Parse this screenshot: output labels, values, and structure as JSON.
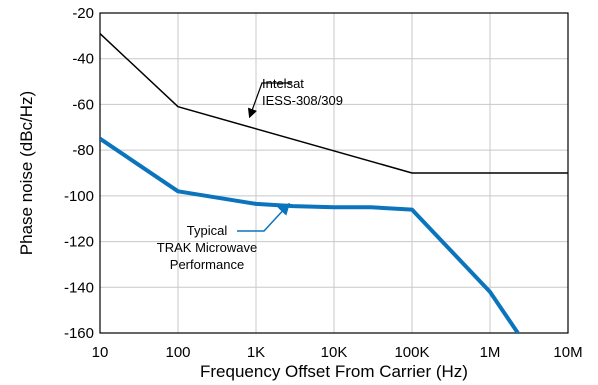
{
  "chart_data": {
    "type": "line",
    "title": "",
    "xlabel": "Frequency Offset From Carrier (Hz)",
    "ylabel": "Phase noise (dBc/Hz)",
    "xscale": "log",
    "xlim": [
      10,
      10000000
    ],
    "ylim": [
      -160,
      -20
    ],
    "grid": true,
    "x_tick_labels": [
      "10",
      "100",
      "1K",
      "10K",
      "100K",
      "1M",
      "10M"
    ],
    "y_tick_labels": [
      "-20",
      "-40",
      "-60",
      "-80",
      "-100",
      "-120",
      "-140",
      "-160"
    ],
    "series": [
      {
        "name": "Intelsat IESS-308/309",
        "color": "#000000",
        "x": [
          10,
          100,
          100000,
          10000000
        ],
        "y": [
          -29,
          -61,
          -90,
          -90
        ]
      },
      {
        "name": "Typical TRAK Microwave Performance",
        "color": "#0a74bd",
        "x": [
          10,
          100,
          1000,
          3000,
          10000,
          30000,
          100000,
          1000000,
          2500000
        ],
        "y": [
          -75,
          -98,
          -103.5,
          -104.5,
          -105,
          -105,
          -106,
          -142,
          -162
        ]
      }
    ],
    "annotations": [
      {
        "lines": [
          "Intelsat",
          "IESS-308/309"
        ],
        "series": 0
      },
      {
        "lines": [
          "Typical",
          "TRAK Microwave",
          "Performance"
        ],
        "series": 1
      }
    ]
  }
}
